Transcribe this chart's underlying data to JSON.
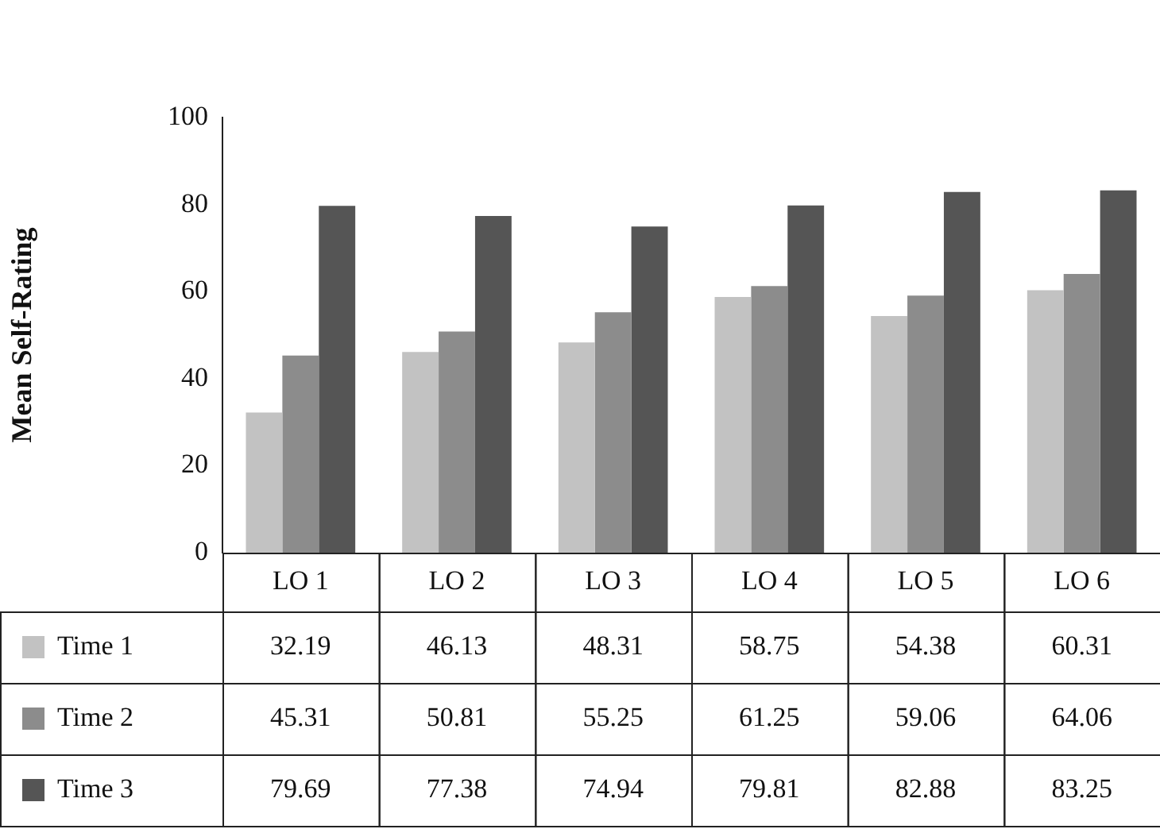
{
  "chart_data": {
    "type": "bar",
    "ylabel": "Mean Self-Rating",
    "categories": [
      "LO 1",
      "LO 2",
      "LO 3",
      "LO 4",
      "LO 5",
      "LO 6"
    ],
    "series": [
      {
        "name": "Time 1",
        "color": "#c2c2c2",
        "values": [
          32.19,
          46.13,
          48.31,
          58.75,
          54.38,
          60.31
        ]
      },
      {
        "name": "Time 2",
        "color": "#8c8c8c",
        "values": [
          45.31,
          50.81,
          55.25,
          61.25,
          59.06,
          64.06
        ]
      },
      {
        "name": "Time 3",
        "color": "#555555",
        "values": [
          79.69,
          77.38,
          74.94,
          79.81,
          82.88,
          83.25
        ]
      }
    ],
    "ylim": [
      0,
      100
    ],
    "yticks": [
      0,
      20,
      40,
      60,
      80,
      100
    ],
    "grid": false,
    "legend": "bottom left",
    "data_labels": true
  }
}
